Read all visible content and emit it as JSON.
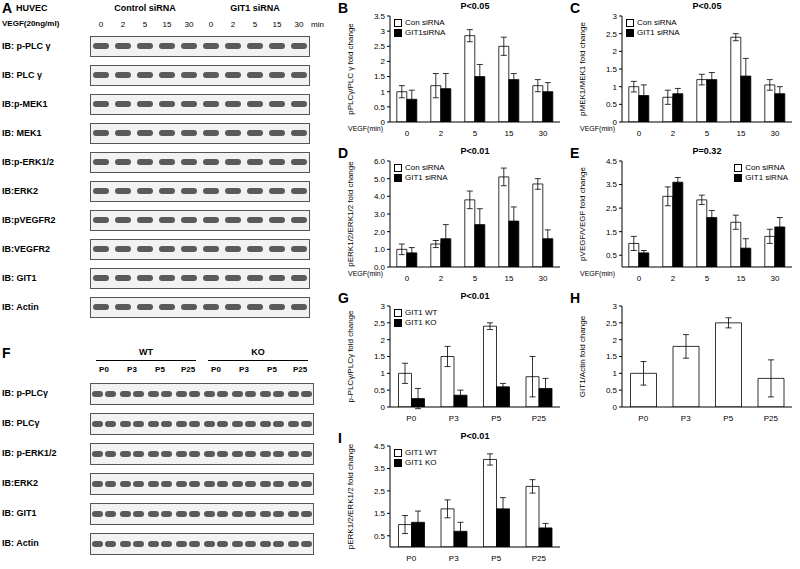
{
  "chart_data": [
    {
      "panel": "B",
      "type": "bar",
      "ylabel": "pPLCγ/PLC γ fold change",
      "xlabel": "VEGF(min)",
      "annotation": "P<0.05",
      "categories": [
        "0",
        "2",
        "5",
        "15",
        "30"
      ],
      "series": [
        {
          "name": "Con siRNA",
          "color": "#ffffff",
          "values": [
            1.0,
            1.2,
            2.85,
            2.5,
            1.2
          ],
          "errors": [
            0.2,
            0.4,
            0.2,
            0.3,
            0.2
          ]
        },
        {
          "name": "GIT1siRNA",
          "color": "#000000",
          "values": [
            0.75,
            1.1,
            1.5,
            1.4,
            1.0
          ],
          "errors": [
            0.3,
            0.5,
            0.4,
            0.2,
            0.3
          ]
        }
      ],
      "ylim": [
        0,
        3.5
      ],
      "yticks": [
        0,
        0.5,
        1,
        1.5,
        2,
        2.5,
        3,
        3.5
      ],
      "legend": "upper left"
    },
    {
      "panel": "C",
      "type": "bar",
      "ylabel": "pMEK1/MEK1 fold change",
      "xlabel": "VEGF(min)",
      "annotation": "P<0.05",
      "categories": [
        "0",
        "2",
        "5",
        "15",
        "30"
      ],
      "series": [
        {
          "name": "Con siRNA",
          "color": "#ffffff",
          "values": [
            1.0,
            0.7,
            1.2,
            2.4,
            1.05
          ],
          "errors": [
            0.15,
            0.2,
            0.15,
            0.1,
            0.15
          ]
        },
        {
          "name": "GIT1 siRNA",
          "color": "#000000",
          "values": [
            0.75,
            0.8,
            1.2,
            1.3,
            0.8
          ],
          "errors": [
            0.3,
            0.15,
            0.2,
            0.5,
            0.2
          ]
        }
      ],
      "ylim": [
        0,
        3
      ],
      "yticks": [
        0,
        0.5,
        1,
        1.5,
        2,
        2.5,
        3
      ],
      "legend": "upper left"
    },
    {
      "panel": "D",
      "type": "bar",
      "ylabel": "pERK1/2/ERK1/2 fold change",
      "xlabel": "VEGF(min)",
      "annotation": "P<0.01",
      "categories": [
        "0",
        "2",
        "5",
        "15",
        "30"
      ],
      "series": [
        {
          "name": "Con siRNA",
          "color": "#ffffff",
          "values": [
            1.0,
            1.3,
            3.8,
            5.1,
            4.7
          ],
          "errors": [
            0.3,
            0.2,
            0.5,
            0.5,
            0.3
          ]
        },
        {
          "name": "GIT1 siRNA",
          "color": "#000000",
          "values": [
            0.8,
            1.6,
            2.4,
            2.6,
            1.6
          ],
          "errors": [
            0.3,
            0.8,
            0.9,
            0.8,
            0.5
          ]
        }
      ],
      "ylim": [
        0,
        6
      ],
      "yticks": [
        {
          "value": 0,
          "label": "0.0"
        },
        {
          "value": 1,
          "label": "1.0"
        },
        {
          "value": 2,
          "label": "2.0"
        },
        {
          "value": 3,
          "label": "3.0"
        },
        {
          "value": 4,
          "label": "4.0"
        },
        {
          "value": 5,
          "label": "5.0"
        },
        {
          "value": 6,
          "label": "6.0"
        }
      ],
      "legend": "upper left"
    },
    {
      "panel": "E",
      "type": "bar",
      "ylabel": "pVEGF/VEGF fold change",
      "xlabel": "VEGF(min)",
      "annotation": "P=0.32",
      "categories": [
        "0",
        "2",
        "5",
        "15",
        "30"
      ],
      "series": [
        {
          "name": "Con siRNA",
          "color": "#ffffff",
          "values": [
            1.0,
            3.0,
            2.85,
            1.9,
            1.3
          ],
          "errors": [
            0.3,
            0.4,
            0.2,
            0.3,
            0.3
          ]
        },
        {
          "name": "GIT1 siRNA",
          "color": "#000000",
          "values": [
            0.6,
            3.6,
            2.1,
            0.8,
            1.7
          ],
          "errors": [
            0.1,
            0.2,
            0.3,
            0.4,
            0.4
          ]
        }
      ],
      "ylim": [
        0,
        4.5
      ],
      "yticks": [
        0,
        0.5,
        1,
        1.5,
        2,
        2.5,
        3,
        3.5,
        4,
        4.5
      ],
      "legend": "upper right"
    },
    {
      "panel": "G",
      "type": "bar",
      "ylabel": "p-PLCγ/PLCγ fold change",
      "annotation": "P<0.01",
      "categories": [
        "P0",
        "P3",
        "P5",
        "P25"
      ],
      "series": [
        {
          "name": "GIT1 WT",
          "color": "#ffffff",
          "values": [
            1.0,
            1.5,
            2.4,
            0.9
          ],
          "errors": [
            0.3,
            0.3,
            0.1,
            0.6
          ]
        },
        {
          "name": "GIT1 KO",
          "color": "#000000",
          "values": [
            0.25,
            0.35,
            0.6,
            0.55
          ],
          "errors": [
            0.3,
            0.15,
            0.1,
            0.3
          ]
        }
      ],
      "ylim": [
        0,
        3
      ],
      "yticks": [
        0,
        0.5,
        1,
        1.5,
        2,
        2.5,
        3
      ],
      "legend": "upper left"
    },
    {
      "panel": "H",
      "type": "bar",
      "ylabel": "GIT1/Actin fold change",
      "categories": [
        "P0",
        "P3",
        "P5",
        "P25"
      ],
      "series": [
        {
          "color": "#ffffff",
          "values": [
            1.0,
            1.8,
            2.5,
            0.85
          ],
          "errors": [
            0.35,
            0.35,
            0.15,
            0.55
          ]
        }
      ],
      "ylim": [
        0,
        3
      ],
      "yticks": [
        0,
        0.5,
        1,
        1.5,
        2,
        2.5,
        3
      ]
    },
    {
      "panel": "I",
      "type": "bar",
      "ylabel": "pERK1/2/ERK1/2 fold change",
      "annotation": "P<0.01",
      "categories": [
        "P0",
        "P3",
        "P5",
        "P25"
      ],
      "series": [
        {
          "name": "GIT1 WT",
          "color": "#ffffff",
          "values": [
            1.0,
            1.7,
            3.9,
            2.7
          ],
          "errors": [
            0.4,
            0.4,
            0.25,
            0.3
          ]
        },
        {
          "name": "GIT1 KO",
          "color": "#000000",
          "values": [
            1.1,
            0.7,
            1.7,
            0.85
          ],
          "errors": [
            0.5,
            0.4,
            0.5,
            0.2
          ]
        }
      ],
      "ylim": [
        0,
        4.5
      ],
      "yticks": [
        {
          "value": 0,
          "label": "0.0"
        },
        {
          "value": 0.5,
          "label": "0.5"
        },
        {
          "value": 1,
          "label": "1.0"
        },
        {
          "value": 1.5,
          "label": "1.5"
        },
        {
          "value": 2,
          "label": "2.0"
        },
        {
          "value": 2.5,
          "label": "2.5"
        },
        {
          "value": 3,
          "label": "3.0"
        },
        {
          "value": 3.5,
          "label": "3.5"
        },
        {
          "value": 4,
          "label": "4.0"
        },
        {
          "value": 4.5,
          "label": "4.5"
        }
      ],
      "legend": "upper left"
    }
  ],
  "blots": [
    {
      "panel": "A",
      "cell_line": "HUVEC",
      "treatment": "VEGF(20ng/ml)",
      "groups": [
        "Control siRNA",
        "GIT1 siRNA"
      ],
      "lanes": [
        "0",
        "2",
        "5",
        "15",
        "30",
        "0",
        "2",
        "5",
        "15",
        "30"
      ],
      "lane_unit": "min",
      "rows": [
        "IB: p-PLC γ",
        "IB: PLC γ",
        "IB:p-MEK1",
        "IB: MEK1",
        "IB:p-ERK1/2",
        "IB:ERK2",
        "IB:pVEGFR2",
        "IB:VEGFR2",
        "IB: GIT1",
        "IB: Actin"
      ]
    },
    {
      "panel": "F",
      "groups": [
        "WT",
        "KO"
      ],
      "lanes": [
        "P0",
        "P3",
        "P5",
        "P25",
        "P0",
        "P3",
        "P5",
        "P25"
      ],
      "rows": [
        "IB: p-PLCγ",
        "IB: PLCγ",
        "IB: p-ERK1/2",
        "IB:ERK2",
        "IB: GIT1",
        "IB: Actin"
      ]
    }
  ]
}
